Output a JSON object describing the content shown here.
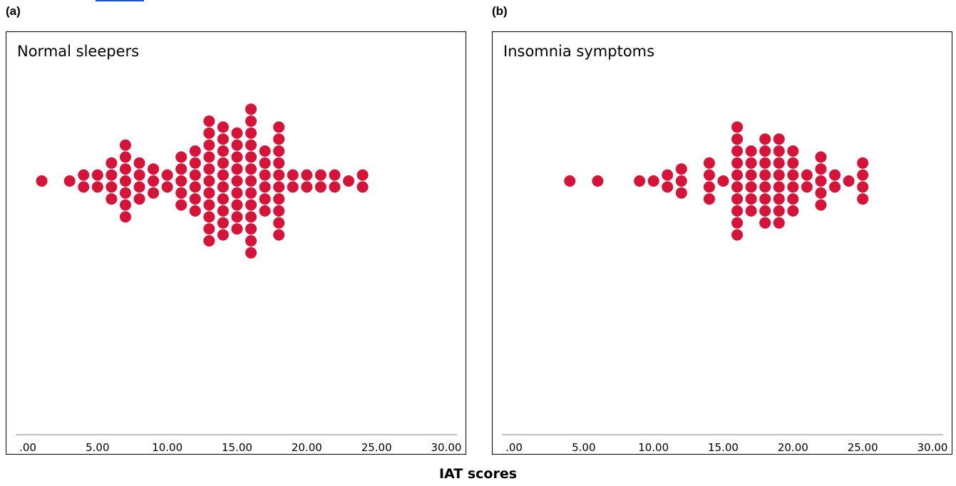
{
  "figure": {
    "xlabel": "IAT scores"
  },
  "chart_data": [
    {
      "type": "scatter",
      "subtype": "dot-plot",
      "panel": "(a)",
      "title": "Normal sleepers",
      "xlim": [
        0,
        30
      ],
      "xticks": [
        ".00",
        "5.00",
        "10.00",
        "15.00",
        "20.00",
        "25.00",
        "30.00"
      ],
      "xtick_values": [
        0,
        5,
        10,
        15,
        20,
        25,
        30
      ],
      "marker_color": "#d6143a",
      "grid": false,
      "counts": [
        {
          "x": 1,
          "n": 1
        },
        {
          "x": 3,
          "n": 1
        },
        {
          "x": 4,
          "n": 2
        },
        {
          "x": 5,
          "n": 2
        },
        {
          "x": 6,
          "n": 4
        },
        {
          "x": 7,
          "n": 7
        },
        {
          "x": 8,
          "n": 4
        },
        {
          "x": 9,
          "n": 3
        },
        {
          "x": 10,
          "n": 2
        },
        {
          "x": 11,
          "n": 5
        },
        {
          "x": 12,
          "n": 6
        },
        {
          "x": 13,
          "n": 11
        },
        {
          "x": 14,
          "n": 10
        },
        {
          "x": 15,
          "n": 9
        },
        {
          "x": 16,
          "n": 13
        },
        {
          "x": 17,
          "n": 6
        },
        {
          "x": 18,
          "n": 10
        },
        {
          "x": 19,
          "n": 2
        },
        {
          "x": 20,
          "n": 2
        },
        {
          "x": 21,
          "n": 2
        },
        {
          "x": 22,
          "n": 2
        },
        {
          "x": 23,
          "n": 1
        },
        {
          "x": 24,
          "n": 2
        }
      ]
    },
    {
      "type": "scatter",
      "subtype": "dot-plot",
      "panel": "(b)",
      "title": "Insomnia symptoms",
      "xlim": [
        0,
        30
      ],
      "xticks": [
        ".00",
        "5.00",
        "10.00",
        "15.00",
        "20.00",
        "25.00",
        "30.00"
      ],
      "xtick_values": [
        0,
        5,
        10,
        15,
        20,
        25,
        30
      ],
      "marker_color": "#d6143a",
      "grid": false,
      "counts": [
        {
          "x": 4,
          "n": 1
        },
        {
          "x": 6,
          "n": 1
        },
        {
          "x": 9,
          "n": 1
        },
        {
          "x": 10,
          "n": 1
        },
        {
          "x": 11,
          "n": 2
        },
        {
          "x": 12,
          "n": 3
        },
        {
          "x": 14,
          "n": 4
        },
        {
          "x": 15,
          "n": 1
        },
        {
          "x": 16,
          "n": 10
        },
        {
          "x": 17,
          "n": 6
        },
        {
          "x": 18,
          "n": 8
        },
        {
          "x": 19,
          "n": 8
        },
        {
          "x": 20,
          "n": 6
        },
        {
          "x": 21,
          "n": 2
        },
        {
          "x": 22,
          "n": 5
        },
        {
          "x": 23,
          "n": 2
        },
        {
          "x": 24,
          "n": 1
        },
        {
          "x": 25,
          "n": 4
        }
      ]
    }
  ]
}
